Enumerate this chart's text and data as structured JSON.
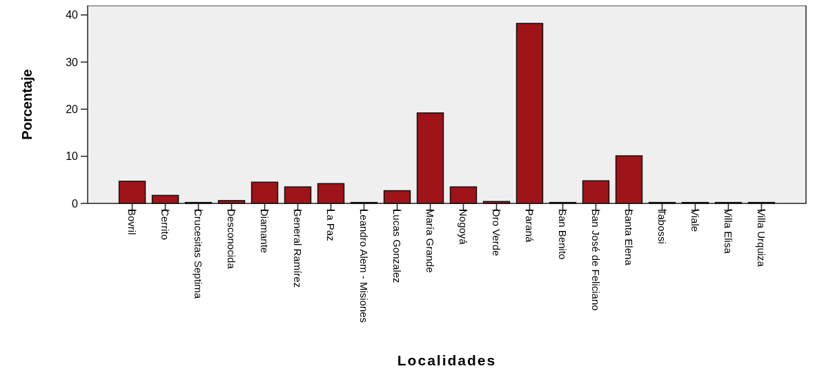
{
  "chart_data": {
    "type": "bar",
    "xlabel": "Localidades",
    "ylabel": "Porcentaje",
    "categories": [
      "Bovril",
      "Cerrito",
      "Crucesitas Septima",
      "Desconocida",
      "Diamante",
      "General Ramírez",
      "La Paz",
      "Leandro Alem - Misiones",
      "Lucas Gonzalez",
      "María Grande",
      "Nogoyá",
      "Oro Verde",
      "Paraná",
      "San Benito",
      "San José de Feliciano",
      "Santa Elena",
      "Tabossi",
      "Viale",
      "Villa Elisa",
      "Villa Urquiza"
    ],
    "values": [
      4.7,
      1.7,
      0.2,
      0.6,
      4.5,
      3.5,
      4.2,
      0.2,
      2.7,
      19.2,
      3.5,
      0.4,
      38.2,
      0.2,
      4.8,
      10.1,
      0.2,
      0.2,
      0.2,
      0.2
    ],
    "color": "#9e1418",
    "ylim": [
      0,
      42
    ],
    "yticks": [
      0,
      10,
      20,
      30,
      40
    ],
    "grid": false
  }
}
